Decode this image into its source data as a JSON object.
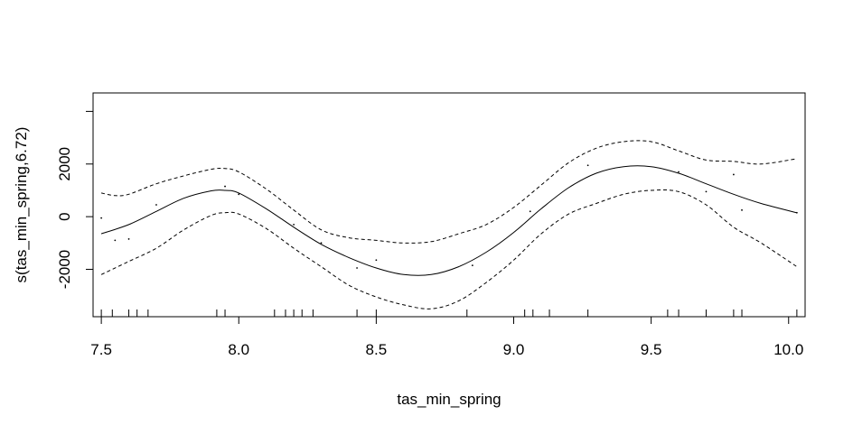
{
  "chart_data": {
    "type": "line",
    "title": "",
    "xlabel": "tas_min_spring",
    "ylabel": "s(tas_min_spring,6.72)",
    "xlim": [
      7.47,
      10.06
    ],
    "ylim": [
      -3800,
      4700
    ],
    "x_ticks": [
      7.5,
      8.0,
      8.5,
      9.0,
      9.5,
      10.0
    ],
    "x_tick_labels": [
      "7.5",
      "8.0",
      "8.5",
      "9.0",
      "9.5",
      "10.0"
    ],
    "y_ticks": [
      -2000,
      0,
      2000
    ],
    "y_tick_labels": [
      "-2000",
      "0",
      "2000"
    ],
    "grid": false,
    "series": [
      {
        "style": "solid",
        "x": [
          7.5,
          7.6,
          7.7,
          7.8,
          7.9,
          7.95,
          8.0,
          8.1,
          8.2,
          8.3,
          8.4,
          8.5,
          8.6,
          8.7,
          8.8,
          8.9,
          9.0,
          9.1,
          9.2,
          9.3,
          9.4,
          9.5,
          9.6,
          9.7,
          9.8,
          9.9,
          10.03
        ],
        "values": [
          -650,
          -300,
          200,
          700,
          980,
          1000,
          900,
          300,
          -400,
          -1050,
          -1550,
          -1950,
          -2200,
          -2200,
          -1900,
          -1350,
          -600,
          300,
          1100,
          1650,
          1900,
          1900,
          1650,
          1250,
          850,
          500,
          150
        ]
      },
      {
        "style": "dashed",
        "x": [
          7.5,
          7.55,
          7.6,
          7.7,
          7.8,
          7.9,
          7.95,
          8.0,
          8.1,
          8.2,
          8.3,
          8.4,
          8.5,
          8.6,
          8.7,
          8.8,
          8.9,
          9.0,
          9.1,
          9.2,
          9.3,
          9.4,
          9.5,
          9.6,
          9.7,
          9.8,
          9.9,
          10.03
        ],
        "values": [
          900,
          800,
          850,
          1250,
          1550,
          1800,
          1830,
          1700,
          1050,
          250,
          -500,
          -800,
          -900,
          -1000,
          -950,
          -650,
          -300,
          350,
          1200,
          2050,
          2600,
          2850,
          2850,
          2500,
          2150,
          2100,
          2000,
          2200
        ]
      },
      {
        "style": "dashed",
        "x": [
          7.5,
          7.6,
          7.7,
          7.8,
          7.9,
          7.95,
          8.0,
          8.1,
          8.2,
          8.3,
          8.4,
          8.5,
          8.6,
          8.7,
          8.8,
          8.9,
          9.0,
          9.1,
          9.2,
          9.3,
          9.4,
          9.5,
          9.6,
          9.7,
          9.8,
          9.9,
          10.03
        ],
        "values": [
          -2200,
          -1700,
          -1200,
          -500,
          50,
          150,
          100,
          -450,
          -1200,
          -1900,
          -2600,
          -3050,
          -3350,
          -3500,
          -3200,
          -2500,
          -1650,
          -650,
          100,
          500,
          850,
          1000,
          950,
          450,
          -400,
          -1000,
          -1900
        ]
      }
    ],
    "partial_residuals": {
      "x": [
        7.5,
        7.55,
        7.6,
        7.7,
        7.95,
        8.0,
        8.2,
        8.3,
        8.43,
        8.5,
        8.85,
        9.06,
        9.27,
        9.6,
        9.7,
        9.8,
        9.83,
        10.03
      ],
      "values": [
        -50,
        -900,
        -850,
        450,
        1150,
        850,
        -300,
        -1000,
        -1950,
        -1650,
        -1850,
        200,
        1950,
        1700,
        950,
        1600,
        250,
        150
      ]
    },
    "rug_x": [
      7.5,
      7.54,
      7.6,
      7.63,
      7.67,
      7.92,
      7.95,
      8.13,
      8.17,
      8.2,
      8.23,
      8.27,
      8.43,
      8.5,
      8.83,
      9.04,
      9.07,
      9.13,
      9.27,
      9.56,
      9.6,
      9.7,
      9.8,
      9.83,
      10.03
    ]
  }
}
